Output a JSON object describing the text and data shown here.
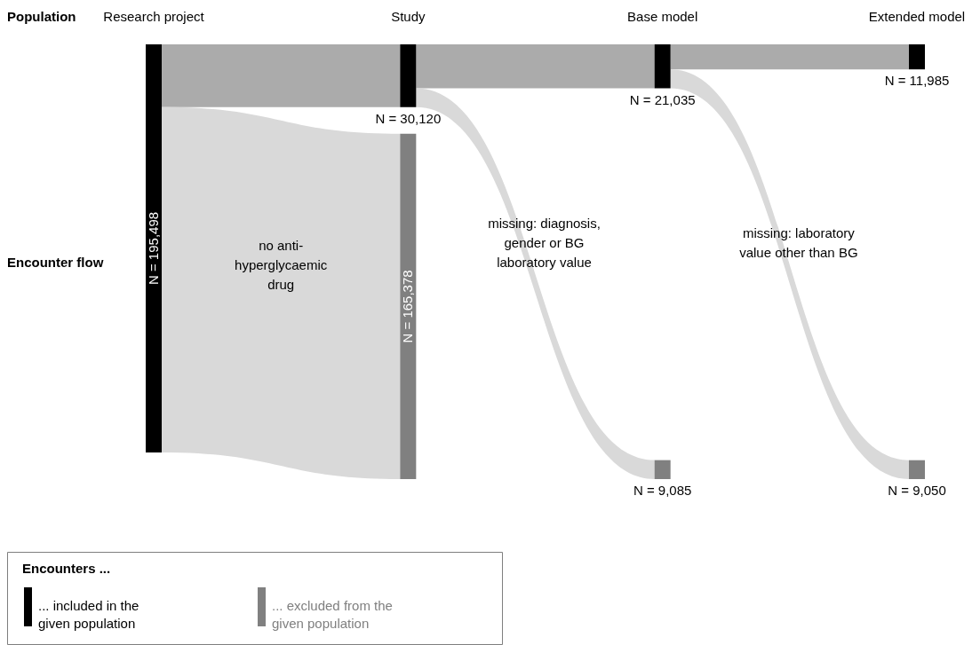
{
  "chart_data": {
    "type": "other",
    "categories": [
      "Research project",
      "Study",
      "Base model",
      "Extended model"
    ],
    "series": [
      {
        "name": "... included in the given population",
        "color": "#000000",
        "values": [
          195498,
          30120,
          21035,
          11985
        ],
        "value_labels": [
          "N = 195,498",
          "N = 30,120",
          "N = 21,035",
          "N = 11,985"
        ]
      },
      {
        "name": "... excluded from the given population",
        "color": "#808080",
        "values": [
          null,
          165378,
          9085,
          9050
        ],
        "value_labels": [
          null,
          "N = 165,378",
          "N = 9,085",
          "N = 9,050"
        ]
      }
    ],
    "legend_title": "Encounters ...",
    "legend": "bottom left",
    "annotations": [
      "Population",
      "Encounter flow",
      "no anti-hyperglycaemic drug",
      "missing: diagnosis, gender or BG laboratory value",
      "missing: laboratory value other than BG"
    ]
  }
}
